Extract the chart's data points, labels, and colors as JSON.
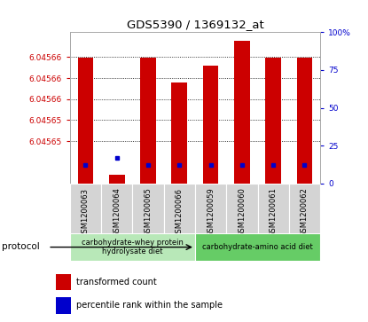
{
  "title": "GDS5390 / 1369132_at",
  "samples": [
    "GSM1200063",
    "GSM1200064",
    "GSM1200065",
    "GSM1200066",
    "GSM1200059",
    "GSM1200060",
    "GSM1200061",
    "GSM1200062"
  ],
  "red_values": [
    6.04566,
    6.045646,
    6.04566,
    6.045657,
    6.045659,
    6.045662,
    6.04566,
    6.04566
  ],
  "percentile_values": [
    12,
    17,
    12,
    12,
    12,
    12,
    12,
    12
  ],
  "ylim_left": [
    6.045645,
    6.045663
  ],
  "ylim_right": [
    0,
    100
  ],
  "protocols": [
    {
      "label": "carbohydrate-whey protein\nhydrolysate diet",
      "indices": [
        0,
        1,
        2,
        3
      ],
      "color": "#b8e8b8"
    },
    {
      "label": "carbohydrate-amino acid diet",
      "indices": [
        4,
        5,
        6,
        7
      ],
      "color": "#66cc66"
    }
  ],
  "bar_width": 0.5,
  "red_color": "#cc0000",
  "blue_color": "#0000cc",
  "left_tick_color": "#cc0000",
  "right_tick_color": "#0000cc",
  "yticks_left": [
    6.04565004,
    6.04565254,
    6.04565504,
    6.04565754,
    6.04566004
  ],
  "ytick_labels_left": [
    "6.04565",
    "6.04565",
    "6.04566",
    "6.04566",
    "6.04566"
  ],
  "yticks_right": [
    0,
    25,
    50,
    75,
    100
  ],
  "ytick_labels_right": [
    "0",
    "25",
    "50",
    "75",
    "100%"
  ],
  "sample_box_color": "#d4d4d4",
  "plot_bg": "#ffffff"
}
